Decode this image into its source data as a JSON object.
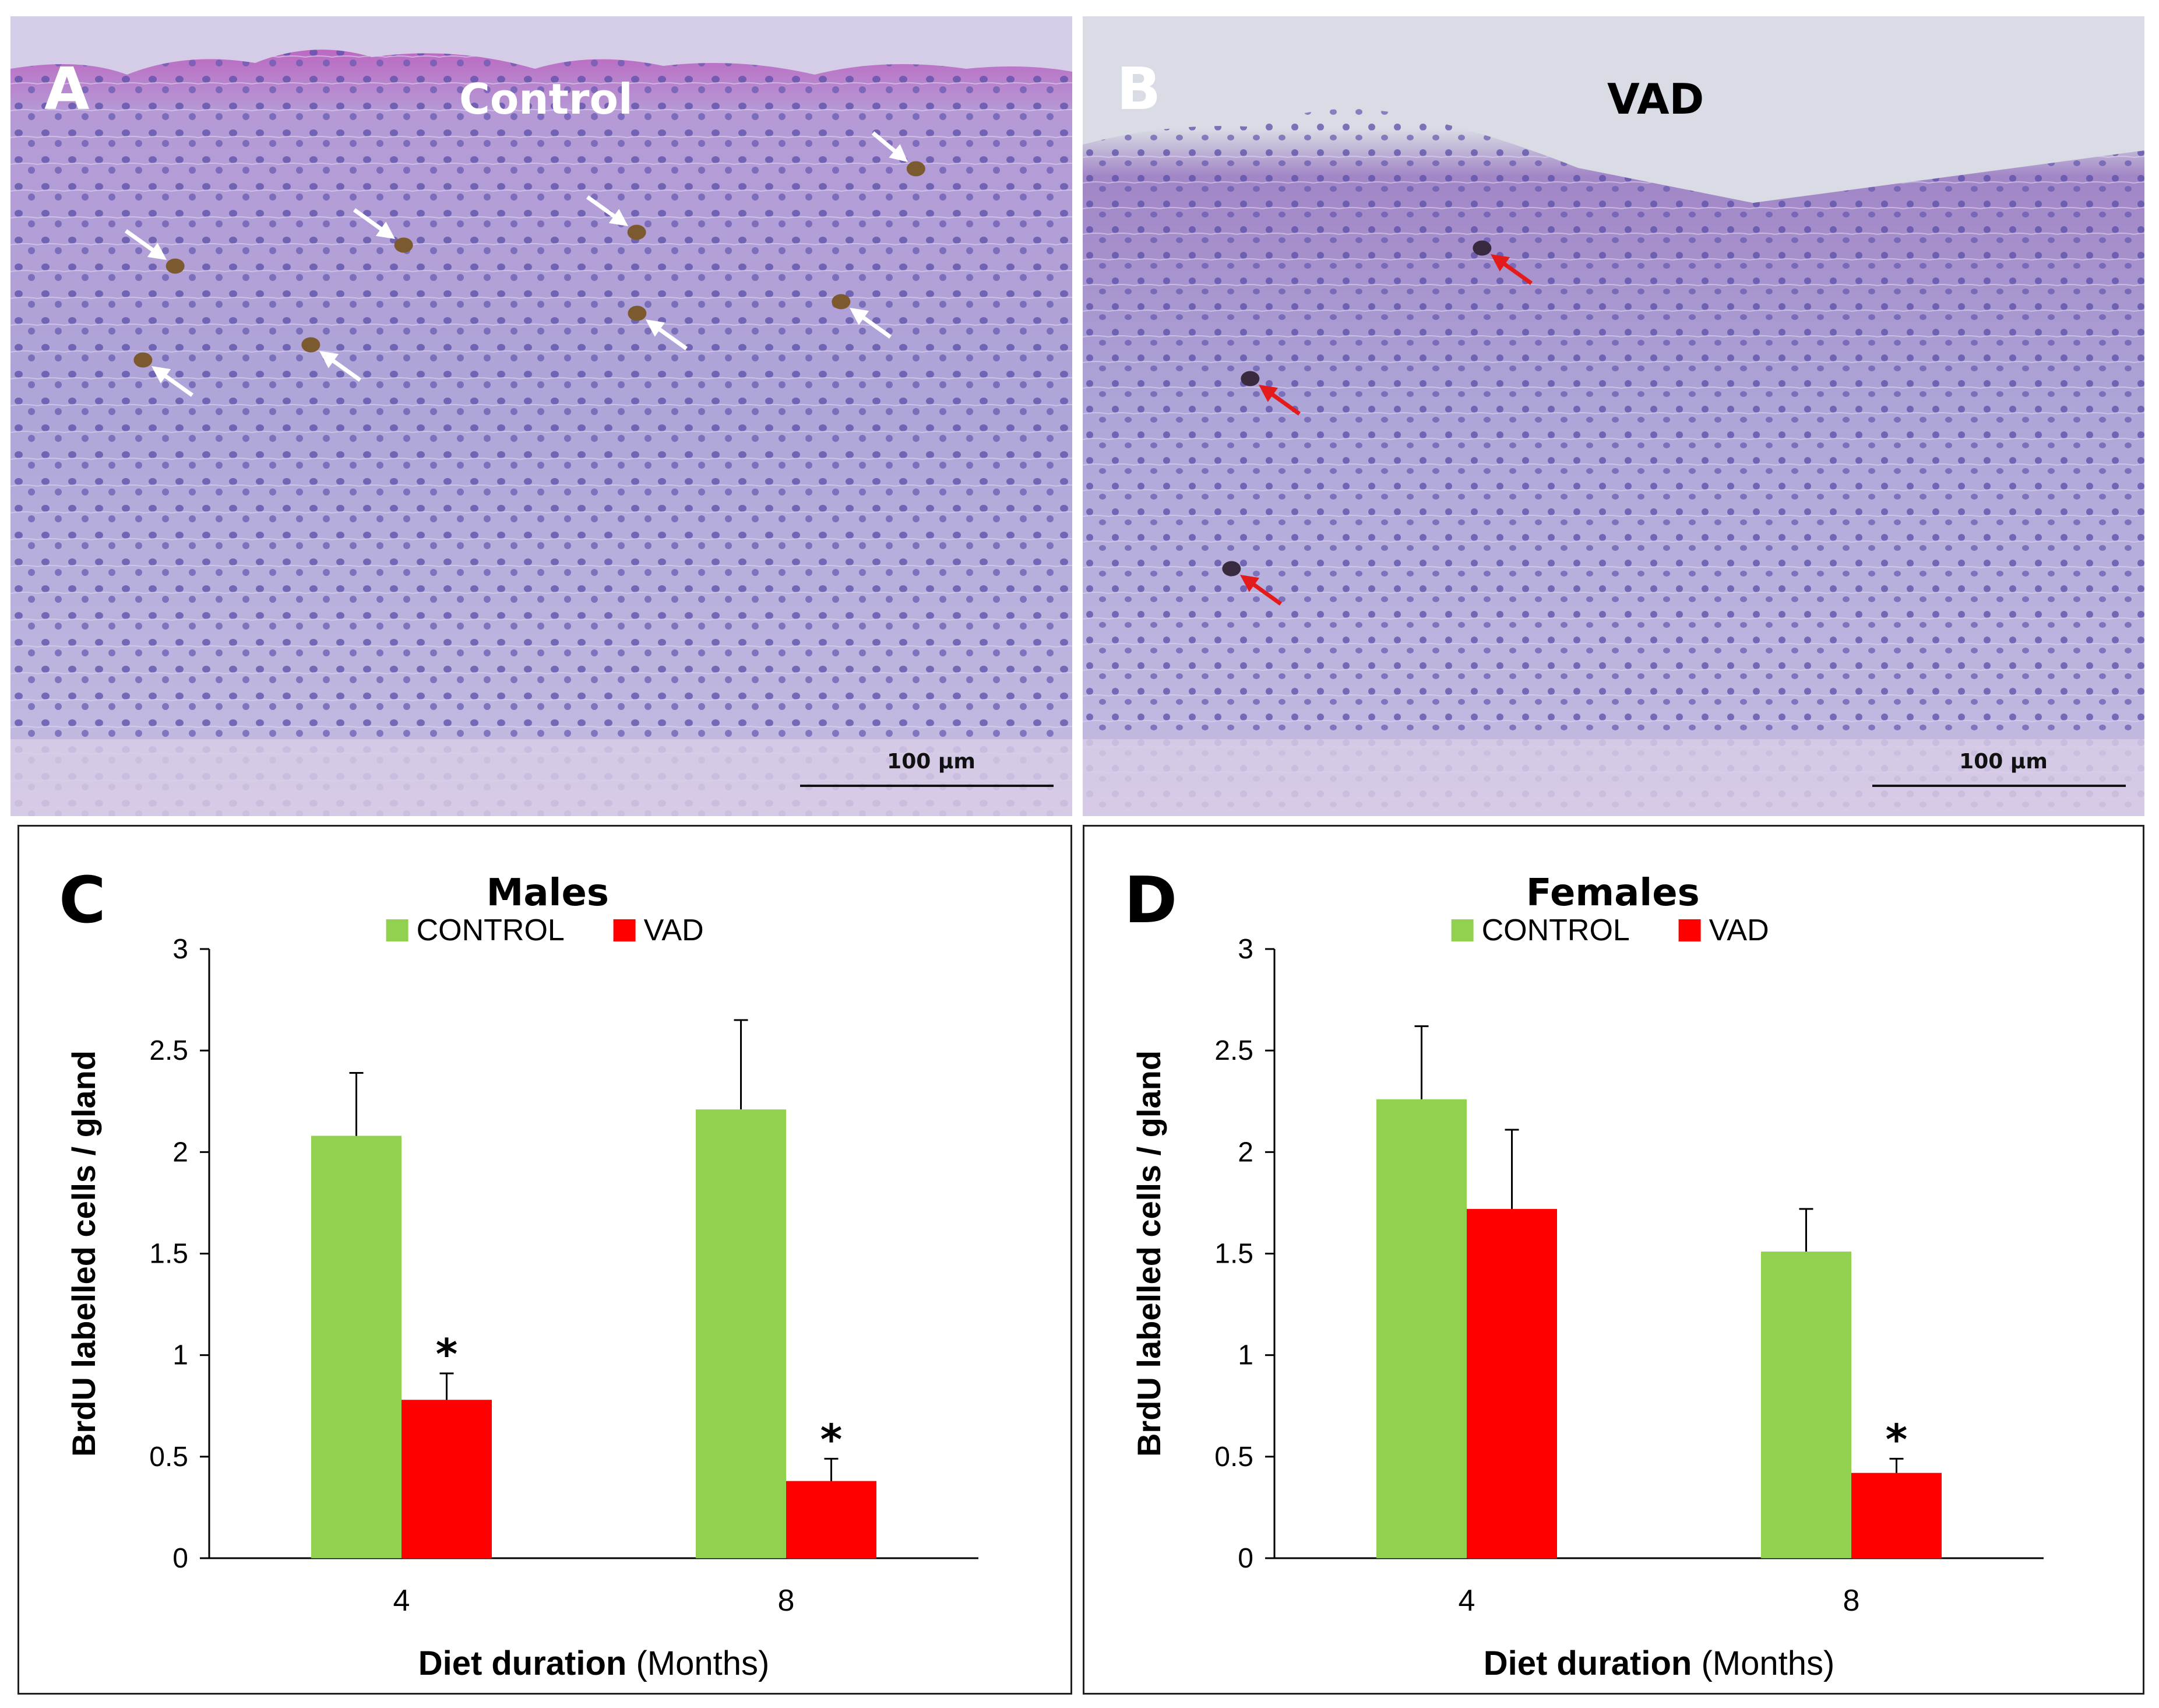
{
  "figure": {
    "photos": [
      {
        "letter": "A",
        "title": "Control",
        "scale_label": "100 µm",
        "arrow_color": "#ffffff"
      },
      {
        "letter": "B",
        "title": "VAD",
        "scale_label": "100 µm",
        "arrow_color": "#e31b1b"
      }
    ]
  },
  "colors": {
    "control": "#92d050",
    "vad": "#ff0000",
    "stain": "#8a7fc4",
    "background_photo": "#c9c2e6"
  },
  "chart_data": [
    {
      "type": "bar",
      "letter": "C",
      "title": "Males",
      "xlabel": "Diet duration",
      "xlabel_unit": "(Months)",
      "ylabel": "BrdU labelled cells / gland",
      "ylim": [
        0,
        3
      ],
      "yticks": [
        "0",
        "0.5",
        "1",
        "1.5",
        "2",
        "2.5",
        "3"
      ],
      "ytick_values": [
        0,
        0.5,
        1,
        1.5,
        2,
        2.5,
        3
      ],
      "categories": [
        "4",
        "8"
      ],
      "legend_position": "top",
      "series": [
        {
          "name": "CONTROL",
          "color": "#92d050",
          "values": [
            2.08,
            2.21
          ],
          "errors": [
            0.31,
            0.44
          ]
        },
        {
          "name": "VAD",
          "color": "#ff0000",
          "values": [
            0.78,
            0.38
          ],
          "errors": [
            0.13,
            0.11
          ]
        }
      ],
      "significance": [
        {
          "series": 1,
          "category": 0,
          "label": "*"
        },
        {
          "series": 1,
          "category": 1,
          "label": "*"
        }
      ]
    },
    {
      "type": "bar",
      "letter": "D",
      "title": "Females",
      "xlabel": "Diet duration",
      "xlabel_unit": "(Months)",
      "ylabel": "BrdU labelled cells / gland",
      "ylim": [
        0,
        3
      ],
      "yticks": [
        "0",
        "0.5",
        "1",
        "1.5",
        "2",
        "2.5",
        "3"
      ],
      "ytick_values": [
        0,
        0.5,
        1,
        1.5,
        2,
        2.5,
        3
      ],
      "categories": [
        "4",
        "8"
      ],
      "legend_position": "top",
      "series": [
        {
          "name": "CONTROL",
          "color": "#92d050",
          "values": [
            2.26,
            1.51
          ],
          "errors": [
            0.36,
            0.21
          ]
        },
        {
          "name": "VAD",
          "color": "#ff0000",
          "values": [
            1.72,
            0.42
          ],
          "errors": [
            0.39,
            0.07
          ]
        }
      ],
      "significance": [
        {
          "series": 1,
          "category": 1,
          "label": "*"
        }
      ]
    }
  ]
}
